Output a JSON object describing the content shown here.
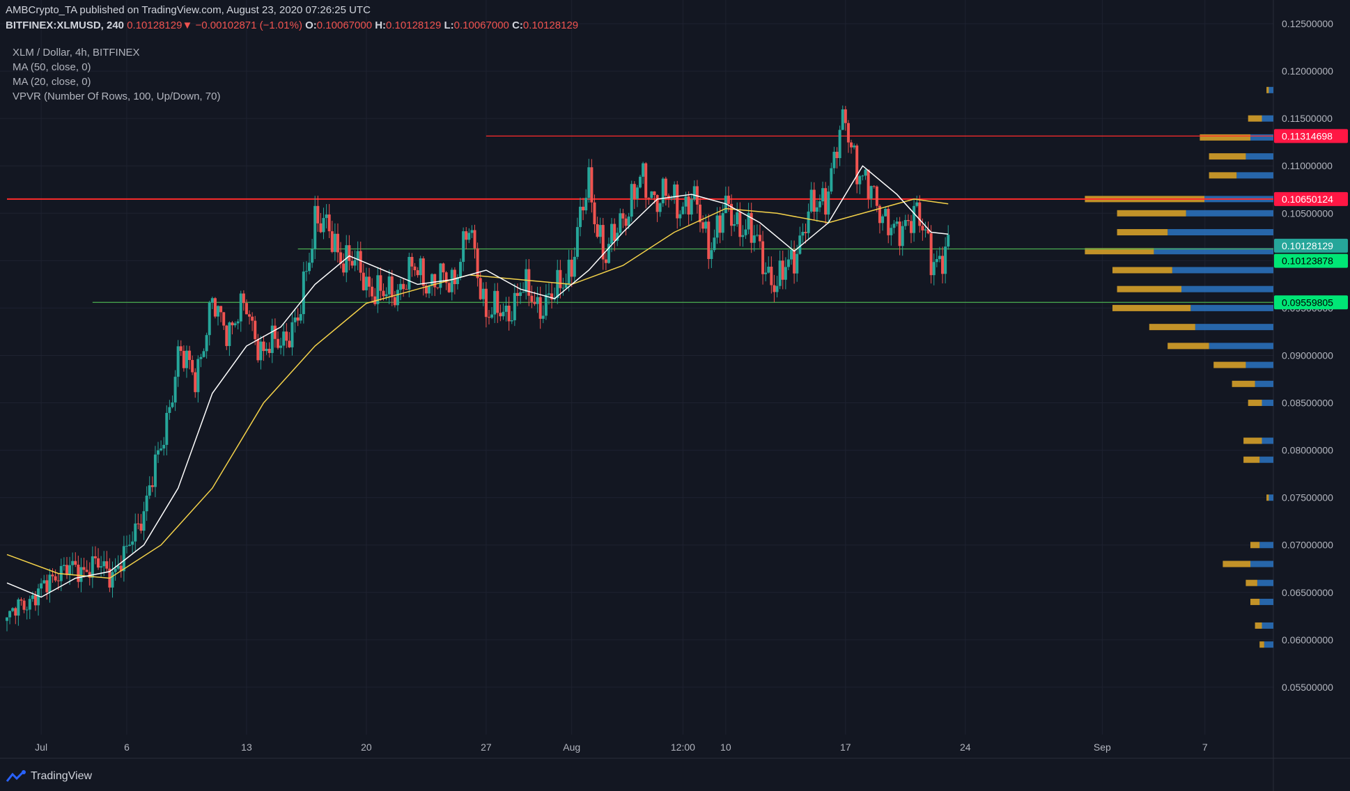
{
  "header": {
    "publisher_line": "AMBCrypto_TA published on TradingView.com, August 23, 2020 07:26:25 UTC",
    "symbol": "BITFINEX:XLMUSD, 240",
    "last": "0.10128129",
    "change": "−0.00102871 (−1.01%)",
    "o_label": "O:",
    "o": "0.10067000",
    "h_label": "H:",
    "h": "0.10128129",
    "l_label": "L:",
    "l": "0.10067000",
    "c_label": "C:",
    "c": "0.10128129"
  },
  "indicators": [
    "XLM / Dollar, 4h, BITFINEX",
    "MA (50, close, 0)",
    "MA (20, close, 0)",
    "VPVR (Number Of Rows, 100, Up/Down, 70)"
  ],
  "brand": {
    "name": "TradingView",
    "icon": "tradingview-logo-icon"
  },
  "colors": {
    "bg": "#131722",
    "grid": "#1e2230",
    "up": "#26a69a",
    "down": "#ef5350",
    "ma50": "#f5d34a",
    "ma20": "#ffffff",
    "vp_up": "#2b74c2",
    "vp_down": "#e2a829",
    "res_line": "#ff2b2b",
    "sup_line": "#4caf50"
  },
  "chart_data": {
    "type": "candlestick",
    "title": "XLM / Dollar, 4h, BITFINEX",
    "y_range": [
      0.05,
      0.1275
    ],
    "y_ticks": [
      0.125,
      0.12,
      0.115,
      0.11,
      0.105,
      0.1,
      0.095,
      0.09,
      0.085,
      0.08,
      0.075,
      0.07,
      0.065,
      0.06,
      0.055
    ],
    "y_tick_labels": [
      "0.12500000",
      "0.12000000",
      "0.11500000",
      "0.11000000",
      "0.10500000",
      "0.10000000",
      "0.09500000",
      "0.09000000",
      "0.08500000",
      "0.08000000",
      "0.07500000",
      "0.07000000",
      "0.06500000",
      "0.06000000",
      "0.05500000"
    ],
    "x_ticks": [
      {
        "label": "Jul",
        "date": "2020-07-01"
      },
      {
        "label": "6",
        "date": "2020-07-06"
      },
      {
        "label": "13",
        "date": "2020-07-13"
      },
      {
        "label": "20",
        "date": "2020-07-20"
      },
      {
        "label": "27",
        "date": "2020-07-27"
      },
      {
        "label": "Aug",
        "date": "2020-08-01"
      },
      {
        "label": "12:00",
        "date": "2020-08-07 12:00"
      },
      {
        "label": "10",
        "date": "2020-08-10"
      },
      {
        "label": "17",
        "date": "2020-08-17"
      },
      {
        "label": "24",
        "date": "2020-08-24"
      },
      {
        "label": "Sep",
        "date": "2020-09-01"
      },
      {
        "label": "7",
        "date": "2020-09-07"
      }
    ],
    "x_start": "2020-06-29",
    "x_end": "2020-09-11",
    "price_path": [
      [
        "2020-06-29",
        0.062
      ],
      [
        "2020-06-30",
        0.064
      ],
      [
        "2020-07-01",
        0.065
      ],
      [
        "2020-07-02",
        0.0675
      ],
      [
        "2020-07-03",
        0.0672
      ],
      [
        "2020-07-04",
        0.068
      ],
      [
        "2020-07-05",
        0.067
      ],
      [
        "2020-07-06",
        0.069
      ],
      [
        "2020-07-07",
        0.074
      ],
      [
        "2020-07-08",
        0.08
      ],
      [
        "2020-07-09",
        0.09
      ],
      [
        "2020-07-10",
        0.088
      ],
      [
        "2020-07-11",
        0.095
      ],
      [
        "2020-07-12",
        0.093
      ],
      [
        "2020-07-13",
        0.095
      ],
      [
        "2020-07-14",
        0.09
      ],
      [
        "2020-07-15",
        0.092
      ],
      [
        "2020-07-16",
        0.093
      ],
      [
        "2020-07-17",
        0.105
      ],
      [
        "2020-07-18",
        0.102
      ],
      [
        "2020-07-19",
        0.1
      ],
      [
        "2020-07-20",
        0.098
      ],
      [
        "2020-07-21",
        0.096
      ],
      [
        "2020-07-22",
        0.0975
      ],
      [
        "2020-07-23",
        0.099
      ],
      [
        "2020-07-24",
        0.0975
      ],
      [
        "2020-07-25",
        0.098
      ],
      [
        "2020-07-26",
        0.103
      ],
      [
        "2020-07-27",
        0.095
      ],
      [
        "2020-07-28",
        0.094
      ],
      [
        "2020-07-29",
        0.097
      ],
      [
        "2020-07-30",
        0.0955
      ],
      [
        "2020-07-31",
        0.096
      ],
      [
        "2020-08-01",
        0.1
      ],
      [
        "2020-08-02",
        0.108
      ],
      [
        "2020-08-03",
        0.1
      ],
      [
        "2020-08-04",
        0.105
      ],
      [
        "2020-08-05",
        0.108
      ],
      [
        "2020-08-06",
        0.107
      ],
      [
        "2020-08-07",
        0.106
      ],
      [
        "2020-08-08",
        0.1065
      ],
      [
        "2020-08-09",
        0.102
      ],
      [
        "2020-08-10",
        0.105
      ],
      [
        "2020-08-11",
        0.104
      ],
      [
        "2020-08-12",
        0.101
      ],
      [
        "2020-08-13",
        0.097
      ],
      [
        "2020-08-14",
        0.101
      ],
      [
        "2020-08-15",
        0.105
      ],
      [
        "2020-08-16",
        0.108
      ],
      [
        "2020-08-17",
        0.115
      ],
      [
        "2020-08-18",
        0.108
      ],
      [
        "2020-08-19",
        0.106
      ],
      [
        "2020-08-20",
        0.102
      ],
      [
        "2020-08-21",
        0.106
      ],
      [
        "2020-08-22",
        0.1
      ],
      [
        "2020-08-23",
        0.1013
      ]
    ],
    "ma20_path": [
      [
        "2020-06-29",
        0.066
      ],
      [
        "2020-07-01",
        0.0645
      ],
      [
        "2020-07-03",
        0.0665
      ],
      [
        "2020-07-05",
        0.0672
      ],
      [
        "2020-07-07",
        0.07
      ],
      [
        "2020-07-09",
        0.076
      ],
      [
        "2020-07-11",
        0.086
      ],
      [
        "2020-07-13",
        0.091
      ],
      [
        "2020-07-15",
        0.093
      ],
      [
        "2020-07-17",
        0.0975
      ],
      [
        "2020-07-19",
        0.1005
      ],
      [
        "2020-07-21",
        0.099
      ],
      [
        "2020-07-23",
        0.0975
      ],
      [
        "2020-07-25",
        0.098
      ],
      [
        "2020-07-27",
        0.099
      ],
      [
        "2020-07-29",
        0.097
      ],
      [
        "2020-07-31",
        0.096
      ],
      [
        "2020-08-02",
        0.099
      ],
      [
        "2020-08-04",
        0.103
      ],
      [
        "2020-08-06",
        0.1065
      ],
      [
        "2020-08-08",
        0.107
      ],
      [
        "2020-08-10",
        0.106
      ],
      [
        "2020-08-12",
        0.104
      ],
      [
        "2020-08-14",
        0.101
      ],
      [
        "2020-08-16",
        0.104
      ],
      [
        "2020-08-18",
        0.11
      ],
      [
        "2020-08-20",
        0.107
      ],
      [
        "2020-08-22",
        0.103
      ],
      [
        "2020-08-23",
        0.1028
      ]
    ],
    "ma50_path": [
      [
        "2020-06-29",
        0.069
      ],
      [
        "2020-07-02",
        0.067
      ],
      [
        "2020-07-05",
        0.0665
      ],
      [
        "2020-07-08",
        0.07
      ],
      [
        "2020-07-11",
        0.076
      ],
      [
        "2020-07-14",
        0.085
      ],
      [
        "2020-07-17",
        0.091
      ],
      [
        "2020-07-20",
        0.0955
      ],
      [
        "2020-07-23",
        0.097
      ],
      [
        "2020-07-26",
        0.0985
      ],
      [
        "2020-07-29",
        0.098
      ],
      [
        "2020-08-01",
        0.0975
      ],
      [
        "2020-08-04",
        0.0995
      ],
      [
        "2020-08-07",
        0.103
      ],
      [
        "2020-08-10",
        0.1055
      ],
      [
        "2020-08-13",
        0.105
      ],
      [
        "2020-08-16",
        0.104
      ],
      [
        "2020-08-19",
        0.1055
      ],
      [
        "2020-08-21",
        0.1065
      ],
      [
        "2020-08-23",
        0.106
      ]
    ],
    "horizontal_lines": [
      {
        "price": 0.11314698,
        "label": "0.11314698",
        "color": "#ff2b2b",
        "from": "2020-07-27"
      },
      {
        "price": 0.10650124,
        "label": "0.10650124",
        "color": "#ff2b2b",
        "from": "2020-06-29"
      },
      {
        "price": 0.10123878,
        "label": "0.10123878",
        "color": "#4caf50",
        "from": "2020-07-16"
      },
      {
        "price": 0.09559805,
        "label": "0.09559805",
        "color": "#4caf50",
        "from": "2020-07-04"
      }
    ],
    "last_price_label": "0.10128129",
    "vpvr_profile": [
      [
        0.0595,
        0.04,
        0.02
      ],
      [
        0.0615,
        0.05,
        0.03
      ],
      [
        0.064,
        0.06,
        0.04
      ],
      [
        0.066,
        0.07,
        0.05
      ],
      [
        0.068,
        0.1,
        0.12
      ],
      [
        0.07,
        0.06,
        0.04
      ],
      [
        0.075,
        0.02,
        0.01
      ],
      [
        0.079,
        0.06,
        0.07
      ],
      [
        0.081,
        0.05,
        0.08
      ],
      [
        0.085,
        0.05,
        0.06
      ],
      [
        0.087,
        0.08,
        0.1
      ],
      [
        0.089,
        0.12,
        0.14
      ],
      [
        0.091,
        0.28,
        0.18
      ],
      [
        0.093,
        0.34,
        0.2
      ],
      [
        0.095,
        0.36,
        0.34
      ],
      [
        0.097,
        0.4,
        0.28
      ],
      [
        0.099,
        0.44,
        0.26
      ],
      [
        0.101,
        0.52,
        0.3
      ],
      [
        0.103,
        0.46,
        0.22
      ],
      [
        0.105,
        0.38,
        0.3
      ],
      [
        0.1065,
        0.3,
        0.52
      ],
      [
        0.109,
        0.16,
        0.12
      ],
      [
        0.111,
        0.12,
        0.16
      ],
      [
        0.113,
        0.1,
        0.22
      ],
      [
        0.115,
        0.05,
        0.06
      ],
      [
        0.118,
        0.02,
        0.01
      ]
    ]
  }
}
